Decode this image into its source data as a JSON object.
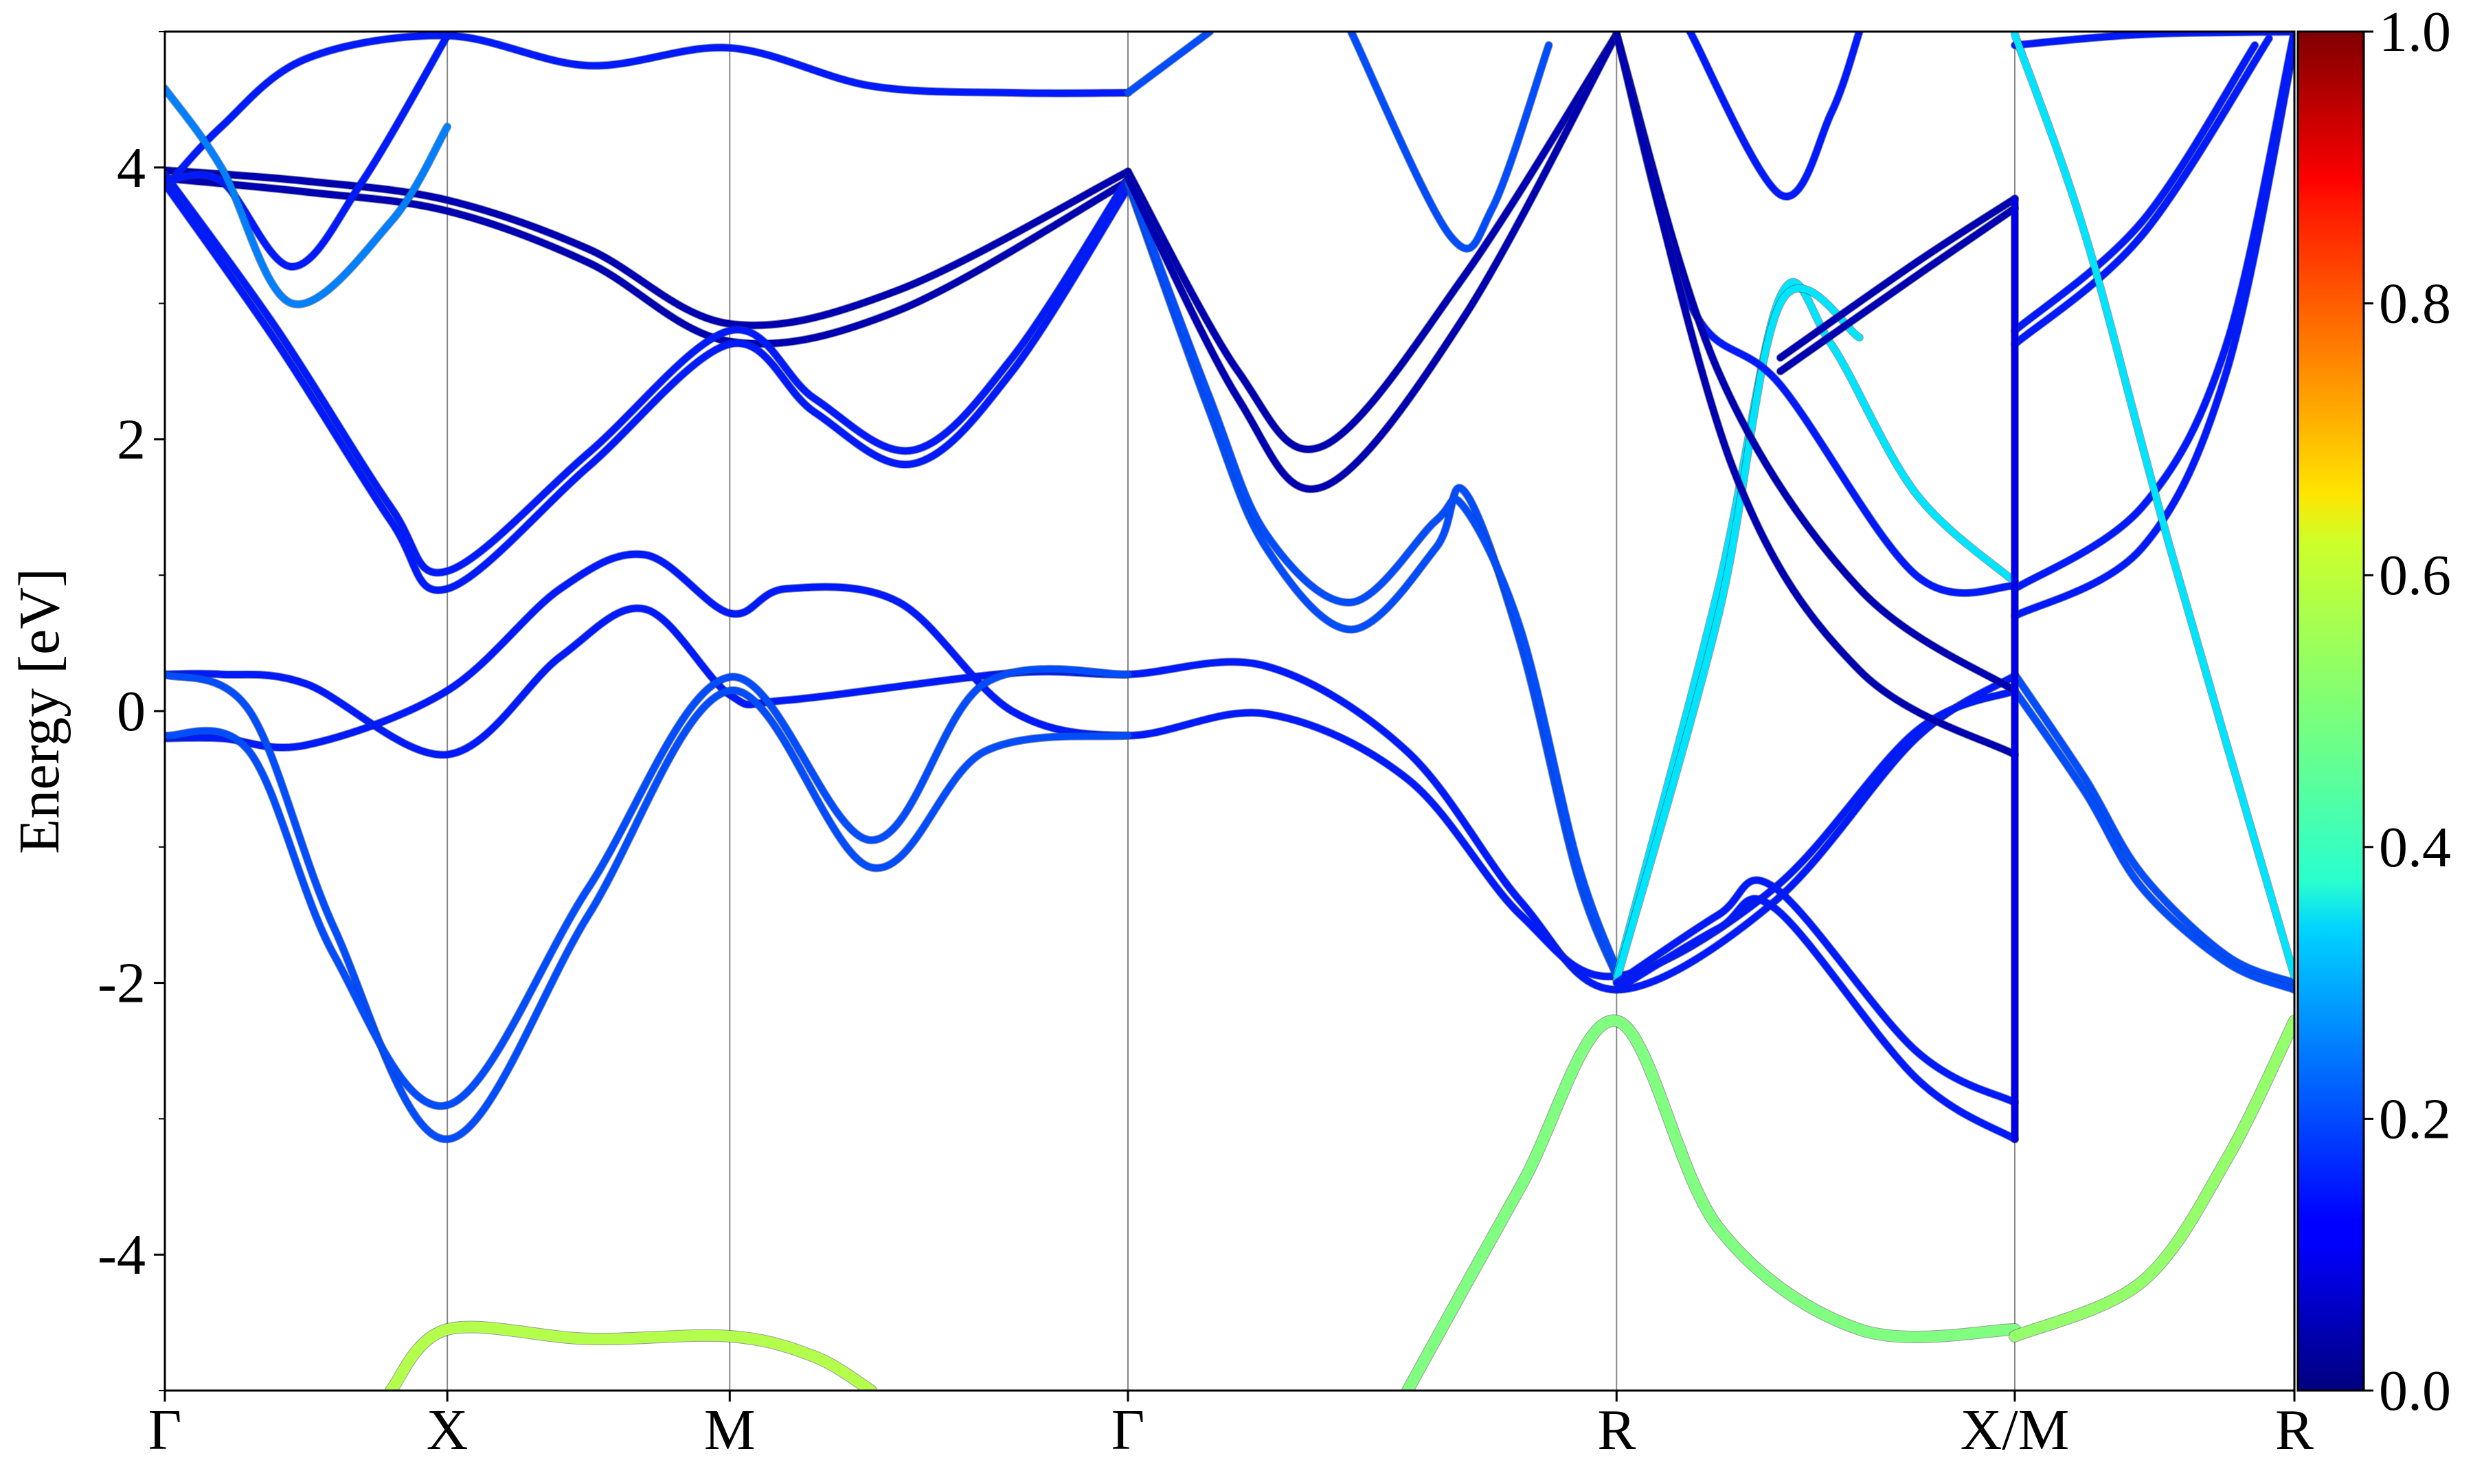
{
  "chart_data": {
    "type": "line",
    "title": "",
    "xlabel": "",
    "ylabel": "Energy [eV]",
    "ylim": [
      -5,
      5
    ],
    "yticks": [
      -4,
      -2,
      0,
      2,
      4
    ],
    "ytick_labels": [
      "-4",
      "-2",
      "0",
      "2",
      "4"
    ],
    "xlim": [
      0,
      7.54
    ],
    "kpoints": [
      {
        "label": "Γ",
        "x": 0
      },
      {
        "label": "X",
        "x": 1.0
      },
      {
        "label": "M",
        "x": 2.0
      },
      {
        "label": "Γ",
        "x": 3.41
      },
      {
        "label": "R",
        "x": 5.14
      },
      {
        "label": "X/M",
        "x": 6.55
      },
      {
        "label": "R",
        "x": 7.54
      }
    ],
    "grid": "vertical lines at k-points",
    "colorbar": {
      "colormap": "jet",
      "range": [
        0.0,
        1.0
      ],
      "ticks": [
        0.0,
        0.2,
        0.4,
        0.6,
        0.8,
        1.0
      ],
      "tick_labels": [
        "0.0",
        "0.2",
        "0.4",
        "0.6",
        "0.8",
        "1.0"
      ]
    },
    "series": [
      {
        "c": 0.05,
        "points": [
          [
            0,
            3.98
          ],
          [
            0.5,
            3.9
          ],
          [
            1,
            3.76
          ],
          [
            1.5,
            3.4
          ],
          [
            2,
            2.85
          ],
          [
            2.6,
            3.1
          ],
          [
            3.41,
            3.97
          ]
        ]
      },
      {
        "c": 0.05,
        "points": [
          [
            0,
            3.92
          ],
          [
            0.5,
            3.82
          ],
          [
            1,
            3.68
          ],
          [
            1.5,
            3.3
          ],
          [
            2,
            2.72
          ],
          [
            2.6,
            2.95
          ],
          [
            3.41,
            3.9
          ]
        ]
      },
      {
        "c": 0.15,
        "points": [
          [
            0,
            3.95
          ],
          [
            0.4,
            2.8
          ],
          [
            0.8,
            1.5
          ],
          [
            1,
            1.03
          ],
          [
            1.5,
            1.9
          ],
          [
            2,
            2.8
          ],
          [
            2.3,
            2.3
          ],
          [
            2.65,
            1.92
          ],
          [
            3.0,
            2.6
          ],
          [
            3.41,
            3.92
          ]
        ]
      },
      {
        "c": 0.15,
        "points": [
          [
            0,
            3.88
          ],
          [
            0.4,
            2.7
          ],
          [
            0.8,
            1.4
          ],
          [
            1,
            0.9
          ],
          [
            1.5,
            1.8
          ],
          [
            2,
            2.7
          ],
          [
            2.3,
            2.2
          ],
          [
            2.65,
            1.82
          ],
          [
            3.0,
            2.5
          ],
          [
            3.41,
            3.85
          ]
        ]
      },
      {
        "c": 0.15,
        "points": [
          [
            0,
            0.27
          ],
          [
            0.2,
            0.27
          ],
          [
            0.5,
            0.2
          ],
          [
            1,
            -0.32
          ],
          [
            1.4,
            0.4
          ],
          [
            1.7,
            0.75
          ],
          [
            2,
            0.12
          ],
          [
            2.2,
            0.08
          ],
          [
            3.0,
            0.28
          ],
          [
            3.41,
            0.27
          ],
          [
            3.9,
            0.33
          ],
          [
            4.4,
            -0.3
          ],
          [
            4.8,
            -1.4
          ],
          [
            5.14,
            -2.05
          ],
          [
            5.7,
            -1.4
          ],
          [
            6.2,
            -0.2
          ],
          [
            6.55,
            0.26
          ]
        ]
      },
      {
        "c": 0.15,
        "points": [
          [
            0,
            -0.2
          ],
          [
            0.2,
            -0.2
          ],
          [
            0.5,
            -0.25
          ],
          [
            1,
            0.15
          ],
          [
            1.4,
            0.9
          ],
          [
            1.7,
            1.15
          ],
          [
            2,
            0.72
          ],
          [
            2.2,
            0.9
          ],
          [
            2.6,
            0.8
          ],
          [
            3.0,
            0.0
          ],
          [
            3.41,
            -0.18
          ],
          [
            3.9,
            -0.02
          ],
          [
            4.4,
            -0.5
          ],
          [
            4.8,
            -1.5
          ],
          [
            5.14,
            -1.95
          ],
          [
            5.7,
            -1.3
          ],
          [
            6.2,
            -0.15
          ],
          [
            6.55,
            0.15
          ]
        ]
      },
      {
        "c": 0.2,
        "points": [
          [
            0,
            0.27
          ],
          [
            0.3,
            0.0
          ],
          [
            0.6,
            -1.6
          ],
          [
            1,
            -3.15
          ],
          [
            1.5,
            -1.5
          ],
          [
            2,
            0.15
          ],
          [
            2.5,
            -1.15
          ],
          [
            2.9,
            -0.3
          ],
          [
            3.41,
            -0.18
          ]
        ]
      },
      {
        "c": 0.2,
        "points": [
          [
            0,
            -0.18
          ],
          [
            0.3,
            -0.3
          ],
          [
            0.6,
            -1.8
          ],
          [
            1,
            -2.9
          ],
          [
            1.5,
            -1.3
          ],
          [
            2,
            0.25
          ],
          [
            2.5,
            -0.95
          ],
          [
            2.9,
            0.2
          ],
          [
            3.41,
            0.27
          ]
        ]
      },
      {
        "c": 0.15,
        "points": [
          [
            0,
            3.85
          ],
          [
            0.2,
            4.3
          ],
          [
            0.5,
            4.8
          ],
          [
            1,
            4.97
          ],
          [
            1.5,
            4.75
          ],
          [
            2,
            4.88
          ],
          [
            2.5,
            4.6
          ],
          [
            3.0,
            4.55
          ],
          [
            3.41,
            4.55
          ]
        ]
      },
      {
        "c": 0.15,
        "points": [
          [
            0,
            3.9
          ],
          [
            0.2,
            3.9
          ],
          [
            0.45,
            3.27
          ],
          [
            0.7,
            3.9
          ],
          [
            1,
            4.97
          ]
        ]
      },
      {
        "c": 0.25,
        "points": [
          [
            0,
            4.58
          ],
          [
            0.2,
            4.0
          ],
          [
            0.45,
            3.0
          ],
          [
            0.8,
            3.6
          ],
          [
            1.0,
            4.3
          ]
        ]
      },
      {
        "c": 0.2,
        "points": [
          [
            3.41,
            3.88
          ],
          [
            3.7,
            2.2
          ],
          [
            3.9,
            1.2
          ],
          [
            4.2,
            0.6
          ],
          [
            4.5,
            1.2
          ],
          [
            4.6,
            1.62
          ],
          [
            4.8,
            0.5
          ],
          [
            5.0,
            -1.2
          ],
          [
            5.14,
            -1.95
          ]
        ]
      },
      {
        "c": 0.2,
        "points": [
          [
            3.41,
            3.9
          ],
          [
            3.7,
            2.3
          ],
          [
            3.9,
            1.3
          ],
          [
            4.2,
            0.8
          ],
          [
            4.5,
            1.4
          ],
          [
            4.6,
            1.5
          ],
          [
            4.8,
            0.6
          ],
          [
            5.0,
            -1.1
          ],
          [
            5.14,
            -1.9
          ]
        ]
      },
      {
        "c": 0.05,
        "points": [
          [
            3.41,
            3.97
          ],
          [
            3.8,
            2.5
          ],
          [
            4.1,
            1.95
          ],
          [
            4.6,
            3.2
          ],
          [
            5.14,
            4.98
          ]
        ]
      },
      {
        "c": 0.05,
        "points": [
          [
            3.41,
            3.92
          ],
          [
            3.8,
            2.3
          ],
          [
            4.1,
            1.65
          ],
          [
            4.6,
            2.9
          ],
          [
            5.14,
            4.98
          ]
        ]
      },
      {
        "c": 0.2,
        "points": [
          [
            3.41,
            4.55
          ],
          [
            3.7,
            5.0
          ]
        ]
      },
      {
        "c": 0.2,
        "points": [
          [
            4.2,
            5.0
          ],
          [
            4.55,
            3.5
          ],
          [
            4.7,
            3.7
          ],
          [
            4.9,
            4.9
          ]
        ]
      },
      {
        "c": 0.35,
        "points": [
          [
            5.14,
            -1.95
          ],
          [
            5.5,
            0.9
          ],
          [
            5.72,
            3.05
          ],
          [
            5.9,
            2.7
          ],
          [
            6.2,
            1.6
          ],
          [
            6.55,
            0.95
          ]
        ]
      },
      {
        "c": 0.35,
        "points": [
          [
            5.14,
            -1.98
          ],
          [
            5.5,
            0.7
          ],
          [
            5.72,
            3.0
          ],
          [
            6.0,
            2.75
          ]
        ]
      },
      {
        "c": 0.15,
        "points": [
          [
            5.14,
            4.98
          ],
          [
            5.4,
            3.0
          ],
          [
            5.72,
            2.4
          ],
          [
            6.2,
            1.0
          ],
          [
            6.55,
            0.92
          ]
        ]
      },
      {
        "c": 0.05,
        "points": [
          [
            5.14,
            4.98
          ],
          [
            5.5,
            2.5
          ],
          [
            6.0,
            0.9
          ],
          [
            6.55,
            0.15
          ]
        ]
      },
      {
        "c": 0.05,
        "points": [
          [
            5.14,
            4.98
          ],
          [
            5.55,
            1.8
          ],
          [
            6.0,
            0.3
          ],
          [
            6.55,
            -0.32
          ]
        ]
      },
      {
        "c": 0.05,
        "points": [
          [
            5.72,
            2.6
          ],
          [
            6.2,
            3.3
          ],
          [
            6.55,
            3.77
          ]
        ]
      },
      {
        "c": 0.05,
        "points": [
          [
            5.72,
            2.5
          ],
          [
            6.2,
            3.2
          ],
          [
            6.55,
            3.7
          ]
        ]
      },
      {
        "c": 0.15,
        "points": [
          [
            5.14,
            -2.0
          ],
          [
            5.5,
            -1.5
          ],
          [
            5.7,
            -1.3
          ],
          [
            6.2,
            -2.5
          ],
          [
            6.55,
            -2.88
          ]
        ]
      },
      {
        "c": 0.15,
        "points": [
          [
            5.14,
            -2.05
          ],
          [
            5.5,
            -1.6
          ],
          [
            5.7,
            -1.45
          ],
          [
            6.2,
            -2.7
          ],
          [
            6.55,
            -3.15
          ]
        ]
      },
      {
        "c": 0.15,
        "points": [
          [
            5.4,
            5.0
          ],
          [
            5.72,
            3.8
          ],
          [
            5.9,
            4.4
          ],
          [
            6.0,
            5.0
          ]
        ]
      },
      {
        "c": 0.15,
        "points": [
          [
            6.55,
            4.9
          ],
          [
            7.0,
            4.98
          ],
          [
            7.54,
            5.0
          ]
        ]
      },
      {
        "c": 0.15,
        "points": [
          [
            6.55,
            2.8
          ],
          [
            7.0,
            3.6
          ],
          [
            7.4,
            4.9
          ]
        ]
      },
      {
        "c": 0.15,
        "points": [
          [
            6.55,
            2.7
          ],
          [
            7.0,
            3.5
          ],
          [
            7.45,
            4.95
          ]
        ]
      },
      {
        "c": 0.15,
        "points": [
          [
            6.55,
            0.7
          ],
          [
            7.0,
            1.2
          ],
          [
            7.3,
            2.5
          ],
          [
            7.54,
            4.9
          ]
        ]
      },
      {
        "c": 0.15,
        "points": [
          [
            6.55,
            0.9
          ],
          [
            7.0,
            1.5
          ],
          [
            7.3,
            2.7
          ],
          [
            7.54,
            5.0
          ]
        ]
      },
      {
        "c": 0.2,
        "points": [
          [
            6.55,
            0.27
          ],
          [
            6.8,
            -0.5
          ],
          [
            7.0,
            -1.2
          ],
          [
            7.3,
            -1.8
          ],
          [
            7.54,
            -2.0
          ]
        ]
      },
      {
        "c": 0.2,
        "points": [
          [
            6.55,
            0.15
          ],
          [
            6.8,
            -0.6
          ],
          [
            7.0,
            -1.3
          ],
          [
            7.3,
            -1.85
          ],
          [
            7.54,
            -2.05
          ]
        ]
      },
      {
        "c": 0.35,
        "points": [
          [
            6.55,
            4.98
          ],
          [
            6.8,
            3.5
          ],
          [
            7.1,
            1.2
          ],
          [
            7.54,
            -1.95
          ]
        ]
      },
      {
        "c": 0.55,
        "points": [
          [
            0.8,
            -5.0
          ],
          [
            1,
            -4.55
          ],
          [
            1.5,
            -4.62
          ],
          [
            2,
            -4.6
          ],
          [
            2.3,
            -4.75
          ],
          [
            2.5,
            -5.0
          ]
        ]
      },
      {
        "c": 0.5,
        "points": [
          [
            4.4,
            -5.0
          ],
          [
            4.8,
            -3.5
          ],
          [
            5.14,
            -2.28
          ],
          [
            5.5,
            -3.8
          ],
          [
            6.0,
            -4.55
          ],
          [
            6.55,
            -4.55
          ]
        ]
      },
      {
        "c": 0.52,
        "points": [
          [
            6.55,
            -4.6
          ],
          [
            7.0,
            -4.2
          ],
          [
            7.3,
            -3.3
          ],
          [
            7.54,
            -2.28
          ]
        ]
      },
      {
        "c": 0.1,
        "points": [
          [
            6.55,
            -3.15
          ],
          [
            6.55,
            3.77
          ]
        ]
      }
    ]
  }
}
